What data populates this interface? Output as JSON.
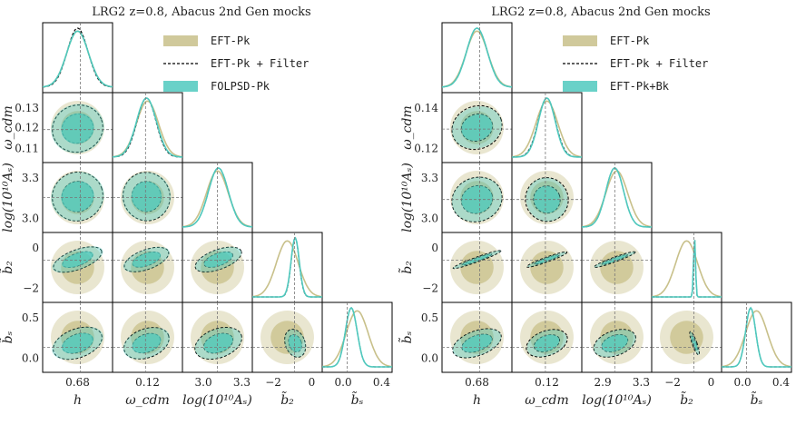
{
  "chart_data": [
    {
      "type": "scatter",
      "title": "LRG2 z=0.8, Abacus 2nd Gen mocks",
      "parameters": [
        "h",
        "ω_cdm",
        "log(10^10 A_s)",
        "b̃_2",
        "b̃_s"
      ],
      "param_labels": [
        "h",
        "ω_cdm",
        "log(10¹⁰Aₛ)",
        "b̃₂",
        "b̃ₛ"
      ],
      "ticks": [
        [
          "0.68"
        ],
        [
          "0.12"
        ],
        [
          "3.0",
          "3.3"
        ],
        [
          "−2",
          "0"
        ],
        [
          "0.0",
          "0.4"
        ]
      ],
      "row_ticks": [
        [],
        [
          "0.13",
          "0.12",
          "0.11"
        ],
        [
          "3.3",
          "3.0"
        ],
        [
          "0",
          "−2"
        ],
        [
          "0.5",
          "0.0"
        ]
      ],
      "truth": [
        0.68,
        0.118,
        3.03,
        0.0,
        -0.12
      ],
      "series": [
        {
          "name": "EFT-Pk",
          "color": "#c8c08a",
          "fill": true,
          "mean": [
            0.675,
            0.119,
            3.03,
            -0.6,
            0.0
          ],
          "sigma": [
            0.02,
            0.0055,
            0.11,
            0.9,
            0.13
          ]
        },
        {
          "name": "EFT-Pk + Filter",
          "color": "#000000",
          "dashed": true,
          "mean": [
            0.675,
            0.1185,
            3.04,
            0.05,
            -0.07
          ],
          "sigma": [
            0.019,
            0.0048,
            0.1,
            0.33,
            0.07
          ]
        },
        {
          "name": "FOLPSD-Pk",
          "color": "#4fc9be",
          "fill": true,
          "mean": [
            0.675,
            0.1185,
            3.04,
            0.05,
            -0.07
          ],
          "sigma": [
            0.02,
            0.005,
            0.1,
            0.34,
            0.07
          ]
        }
      ]
    },
    {
      "type": "scatter",
      "title": "LRG2 z=0.8, Abacus 2nd Gen mocks",
      "parameters": [
        "h",
        "ω_cdm",
        "log(10^10 A_s)",
        "b̃_2",
        "b̃_s"
      ],
      "param_labels": [
        "h",
        "ω_cdm",
        "log(10¹⁰Aₛ)",
        "b̃₂",
        "b̃ₛ"
      ],
      "ticks": [
        [
          "0.68"
        ],
        [
          "0.12"
        ],
        [
          "2.9",
          "3.3"
        ],
        [
          "−2",
          "0"
        ],
        [
          "0.0",
          "0.4"
        ]
      ],
      "row_ticks": [
        [],
        [
          "0.14",
          "0.12"
        ],
        [
          "3.3",
          "3.0"
        ],
        [
          "0",
          "−2"
        ],
        [
          "0.5",
          "0.0"
        ]
      ],
      "truth": [
        0.68,
        0.118,
        3.03,
        0.0,
        -0.12
      ],
      "series": [
        {
          "name": "EFT-Pk",
          "color": "#c8c08a",
          "fill": true,
          "mean": [
            0.675,
            0.119,
            3.05,
            -0.6,
            0.0
          ],
          "sigma": [
            0.02,
            0.0075,
            0.11,
            0.9,
            0.13
          ]
        },
        {
          "name": "EFT-Pk + Filter",
          "color": "#000000",
          "dashed": true,
          "mean": [
            0.675,
            0.119,
            3.03,
            0.05,
            -0.07
          ],
          "sigma": [
            0.019,
            0.006,
            0.09,
            0.08,
            0.06
          ]
        },
        {
          "name": "EFT-Pk+Bk",
          "color": "#4fc9be",
          "fill": true,
          "mean": [
            0.675,
            0.119,
            3.03,
            0.05,
            -0.07
          ],
          "sigma": [
            0.019,
            0.0058,
            0.09,
            0.08,
            0.06
          ]
        }
      ]
    }
  ]
}
